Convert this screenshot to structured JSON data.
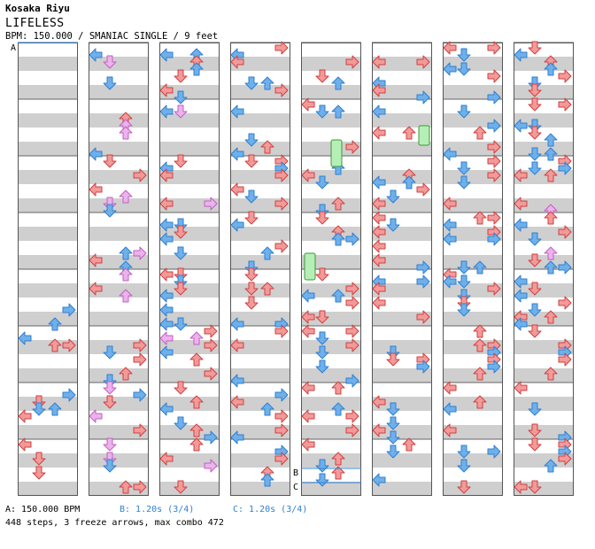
{
  "header": {
    "artist": "Kosaka Riyu",
    "title": "LIFELESS",
    "info": "BPM: 150.000 / SMANIAC SINGLE / 9 feet"
  },
  "markers": {
    "a": "A",
    "b": "B",
    "c": "C"
  },
  "footer": {
    "bpm": "A: 150.000 BPM",
    "stop_b": "B: 1.20s (3/4)",
    "stop_c": "C: 1.20s (3/4)",
    "stats": "448 steps, 3 freeze arrows, max combo 472"
  },
  "colors": {
    "red": "#f29a9a",
    "blue": "#6fb0ea",
    "pink": "#ecb2ec",
    "green": "#b6efb6",
    "stripe": "#cfcfcf"
  },
  "columns": 8,
  "measures_per_column": 8
}
